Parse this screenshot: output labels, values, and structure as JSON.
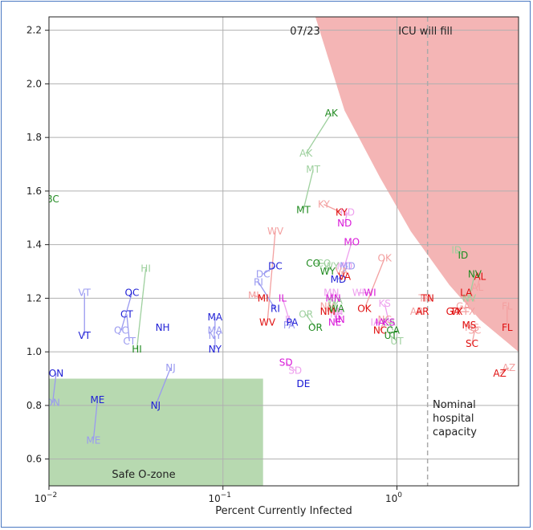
{
  "chart_data": {
    "type": "scatter",
    "title": "07/23",
    "xlabel": "Percent Currently Infected",
    "ylabel": "",
    "x_scale": "log",
    "xlim": [
      0.01,
      5
    ],
    "ylim": [
      0.5,
      2.25
    ],
    "grid": true,
    "x_ticks": [
      {
        "value": 0.01,
        "base": "10",
        "exp": "−2"
      },
      {
        "value": 0.1,
        "base": "10",
        "exp": "−1"
      },
      {
        "value": 1,
        "base": "10",
        "exp": "0"
      }
    ],
    "y_ticks": [
      "0.6",
      "0.8",
      "1.0",
      "1.2",
      "1.4",
      "1.6",
      "1.8",
      "2.0",
      "2.2"
    ],
    "annotations": {
      "icu": "ICU will fill",
      "capacity": [
        "Nominal",
        "hospital",
        "capacity"
      ],
      "safe": "Safe O-zone"
    },
    "capacity_x": 1.5,
    "safe_zone": {
      "x": [
        0.01,
        0.17
      ],
      "y": [
        0.5,
        0.9
      ]
    },
    "icu_region": [
      [
        0.34,
        2.25
      ],
      [
        0.5,
        1.9
      ],
      [
        0.8,
        1.65
      ],
      [
        1.2,
        1.45
      ],
      [
        2,
        1.25
      ],
      [
        3,
        1.12
      ],
      [
        5,
        1.0
      ]
    ],
    "colors": {
      "blue": "#1f1fd6",
      "blue_light": "#9a9af0",
      "red": "#e01010",
      "red_light": "#f3a0a0",
      "green": "#228b22",
      "green_light": "#9ed09e",
      "magenta": "#d91ad9",
      "magenta_light": "#eea0ee",
      "safe_fill": "#b7d9b0",
      "icu_fill": "#f4b5b5"
    },
    "states": [
      {
        "label": "AK",
        "color": "green",
        "from": [
          0.3,
          1.74
        ],
        "to": [
          0.42,
          1.89
        ]
      },
      {
        "label": "MT",
        "color": "green",
        "from": [
          0.33,
          1.68
        ],
        "to": [
          0.29,
          1.53
        ]
      },
      {
        "label": "BC",
        "color": "green",
        "to": [
          0.0105,
          1.57
        ]
      },
      {
        "label": "KY",
        "color": "red",
        "from": [
          0.38,
          1.55
        ],
        "to": [
          0.48,
          1.52
        ]
      },
      {
        "label": "ND",
        "color": "magenta",
        "from": [
          0.52,
          1.52
        ],
        "to": [
          0.5,
          1.48
        ]
      },
      {
        "label": "MO",
        "color": "magenta",
        "from": [
          0.5,
          1.32
        ],
        "to": [
          0.55,
          1.41
        ]
      },
      {
        "label": "OK",
        "color": "red",
        "from": [
          0.85,
          1.35
        ],
        "to": [
          0.65,
          1.16
        ]
      },
      {
        "label": "WV",
        "color": "red",
        "from": [
          0.2,
          1.45
        ],
        "to": [
          0.18,
          1.11
        ]
      },
      {
        "label": "CO",
        "color": "green",
        "from": [
          0.38,
          1.33
        ],
        "to": [
          0.33,
          1.33
        ]
      },
      {
        "label": "WY",
        "color": "green",
        "from": [
          0.42,
          1.32
        ],
        "to": [
          0.4,
          1.3
        ]
      },
      {
        "label": "DC",
        "color": "blue",
        "from": [
          0.17,
          1.29
        ],
        "to": [
          0.2,
          1.32
        ]
      },
      {
        "label": "MD",
        "color": "blue",
        "from": [
          0.52,
          1.32
        ],
        "to": [
          0.46,
          1.27
        ]
      },
      {
        "label": "VA",
        "color": "red",
        "from": [
          0.48,
          1.3
        ],
        "to": [
          0.5,
          1.28
        ]
      },
      {
        "label": "MI",
        "color": "red",
        "from": [
          0.15,
          1.21
        ],
        "to": [
          0.17,
          1.2
        ]
      },
      {
        "label": "RI",
        "color": "blue",
        "from": [
          0.16,
          1.26
        ],
        "to": [
          0.2,
          1.16
        ]
      },
      {
        "label": "IL",
        "color": "magenta",
        "from": [
          0.24,
          1.12
        ],
        "to": [
          0.22,
          1.2
        ]
      },
      {
        "label": "PA",
        "color": "blue",
        "from": [
          0.24,
          1.1
        ],
        "to": [
          0.25,
          1.11
        ]
      },
      {
        "label": "OR",
        "color": "green",
        "from": [
          0.3,
          1.14
        ],
        "to": [
          0.34,
          1.09
        ]
      },
      {
        "label": "MN",
        "color": "magenta",
        "from": [
          0.42,
          1.22
        ],
        "to": [
          0.43,
          1.2
        ]
      },
      {
        "label": "NM",
        "color": "red",
        "from": [
          0.4,
          1.17
        ],
        "to": [
          0.4,
          1.15
        ]
      },
      {
        "label": "WA",
        "color": "green",
        "from": [
          0.44,
          1.19
        ],
        "to": [
          0.45,
          1.16
        ]
      },
      {
        "label": "NH",
        "color": "blue",
        "to": [
          0.045,
          1.09
        ]
      },
      {
        "label": "NE",
        "color": "magenta",
        "from": [
          0.45,
          1.14
        ],
        "to": [
          0.44,
          1.11
        ]
      },
      {
        "label": "IN",
        "color": "magenta",
        "from": [
          0.46,
          1.15
        ],
        "to": [
          0.47,
          1.12
        ]
      },
      {
        "label": "WI",
        "color": "magenta",
        "from": [
          0.6,
          1.22
        ],
        "to": [
          0.7,
          1.22
        ]
      },
      {
        "label": "KS",
        "color": "magenta",
        "from": [
          0.85,
          1.18
        ],
        "to": [
          0.9,
          1.11
        ]
      },
      {
        "label": "IA",
        "color": "magenta",
        "from": [
          0.75,
          1.11
        ],
        "to": [
          0.8,
          1.11
        ]
      },
      {
        "label": "NC",
        "color": "red",
        "from": [
          0.85,
          1.12
        ],
        "to": [
          0.8,
          1.08
        ]
      },
      {
        "label": "CA",
        "color": "green",
        "from": [
          0.9,
          1.11
        ],
        "to": [
          0.95,
          1.08
        ]
      },
      {
        "label": "UT",
        "color": "green",
        "from": [
          1.0,
          1.04
        ],
        "to": [
          0.92,
          1.06
        ]
      },
      {
        "label": "TN",
        "color": "red",
        "from": [
          1.45,
          1.2
        ],
        "to": [
          1.5,
          1.2
        ]
      },
      {
        "label": "AR",
        "color": "red",
        "from": [
          1.3,
          1.15
        ],
        "to": [
          1.4,
          1.15
        ]
      },
      {
        "label": "GA",
        "color": "red",
        "from": [
          2.4,
          1.17
        ],
        "to": [
          2.1,
          1.15
        ]
      },
      {
        "label": "TX",
        "color": "red",
        "from": [
          2.6,
          1.15
        ],
        "to": [
          2.2,
          1.15
        ],
        "big": true
      },
      {
        "label": "LA",
        "color": "red",
        "from": [
          2.6,
          1.2
        ],
        "to": [
          2.5,
          1.22
        ]
      },
      {
        "label": "AL",
        "color": "red",
        "from": [
          2.9,
          1.24
        ],
        "to": [
          3.0,
          1.28
        ]
      },
      {
        "label": "NV",
        "color": "green",
        "from": [
          2.6,
          1.2
        ],
        "to": [
          2.8,
          1.29
        ]
      },
      {
        "label": "ID",
        "color": "green",
        "from": [
          2.2,
          1.38
        ],
        "to": [
          2.4,
          1.36
        ]
      },
      {
        "label": "MS",
        "color": "red",
        "from": [
          2.7,
          1.09
        ],
        "to": [
          2.6,
          1.1
        ]
      },
      {
        "label": "SC",
        "color": "red",
        "from": [
          2.8,
          1.08
        ],
        "to": [
          2.7,
          1.03
        ]
      },
      {
        "label": "FL",
        "color": "red",
        "from": [
          4.3,
          1.17
        ],
        "to": [
          4.3,
          1.09
        ]
      },
      {
        "label": "AZ",
        "color": "red",
        "from": [
          4.4,
          0.94
        ],
        "to": [
          3.9,
          0.92
        ]
      },
      {
        "label": "SD",
        "color": "magenta",
        "from": [
          0.26,
          0.93
        ],
        "to": [
          0.23,
          0.96
        ]
      },
      {
        "label": "DE",
        "color": "blue",
        "from": [
          0.29,
          0.88
        ],
        "to": [
          0.29,
          0.88
        ]
      },
      {
        "label": "MA",
        "color": "blue",
        "from": [
          0.09,
          1.08
        ],
        "to": [
          0.09,
          1.13
        ]
      },
      {
        "label": "NY",
        "color": "blue",
        "from": [
          0.09,
          1.06
        ],
        "to": [
          0.09,
          1.01
        ]
      },
      {
        "label": "NJ",
        "color": "blue",
        "from": [
          0.05,
          0.94
        ],
        "to": [
          0.041,
          0.8
        ]
      },
      {
        "label": "ME",
        "color": "blue",
        "from": [
          0.018,
          0.67
        ],
        "to": [
          0.019,
          0.82
        ]
      },
      {
        "label": "ON",
        "color": "blue",
        "from": [
          0.0105,
          0.81
        ],
        "to": [
          0.011,
          0.92
        ]
      },
      {
        "label": "VT",
        "color": "blue",
        "from": [
          0.016,
          1.22
        ],
        "to": [
          0.016,
          1.06
        ]
      },
      {
        "label": "QC",
        "color": "blue",
        "from": [
          0.026,
          1.08
        ],
        "to": [
          0.03,
          1.22
        ]
      },
      {
        "label": "CT",
        "color": "blue",
        "from": [
          0.029,
          1.04
        ],
        "to": [
          0.028,
          1.14
        ]
      },
      {
        "label": "HI",
        "color": "green",
        "from": [
          0.036,
          1.31
        ],
        "to": [
          0.032,
          1.01
        ]
      }
    ]
  }
}
